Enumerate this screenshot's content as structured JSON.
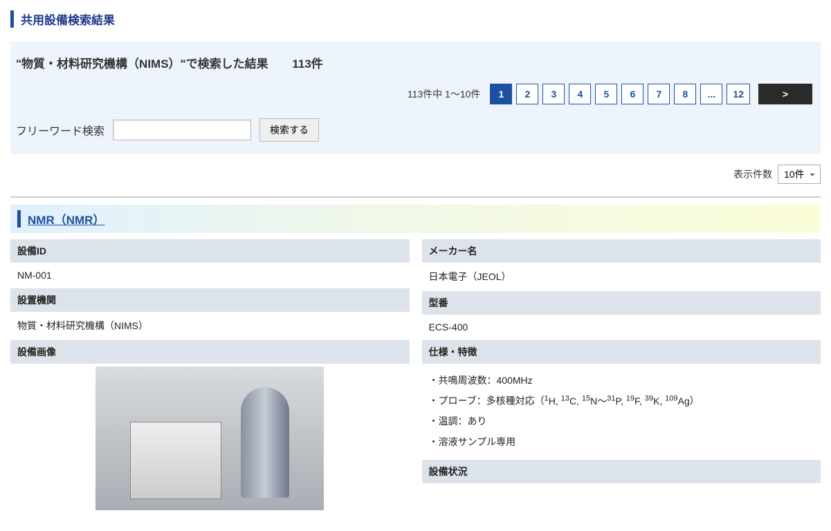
{
  "page_title": "共用設備検索結果",
  "search": {
    "summary_prefix": "\"物質・材料研究機構（NIMS）\"で検索した結果",
    "total_count_label": "113件",
    "range_label": "113件中 1〜10件",
    "freeword_label": "フリーワード検索",
    "search_button": "検索する"
  },
  "pagination": {
    "pages": [
      "1",
      "2",
      "3",
      "4",
      "5",
      "6",
      "7",
      "8",
      "...",
      "12"
    ],
    "active_index": 0,
    "next_label": ">"
  },
  "perpage": {
    "label": "表示件数",
    "selected": "10件"
  },
  "result": {
    "title": "NMR（NMR）",
    "left": {
      "id_label": "設備ID",
      "id_value": "NM-001",
      "org_label": "設置機関",
      "org_value": "物質・材料研究機構（NIMS）",
      "image_label": "設備画像"
    },
    "right": {
      "maker_label": "メーカー名",
      "maker_value": "日本電子（JEOL）",
      "model_label": "型番",
      "model_value": "ECS-400",
      "spec_label": "仕様・特徴",
      "spec_line1": "・共鳴周波数：400MHz",
      "spec_line2_pre": "・プローブ：多核種対応（",
      "spec_line2_post": "）",
      "spec_line3": "・温調：あり",
      "spec_line4": "・溶液サンプル専用",
      "status_label": "設備状況"
    }
  },
  "nuclei_html": "<span class='im-sup'>1</span>H, <span class='im-sup'>13</span>C, <span class='im-sup'>15</span>N〜<span class='im-sup'>31</span>P, <span class='im-sup'>19</span>F, <span class='im-sup'>39</span>K, <span class='im-sup'>109</span>Ag"
}
